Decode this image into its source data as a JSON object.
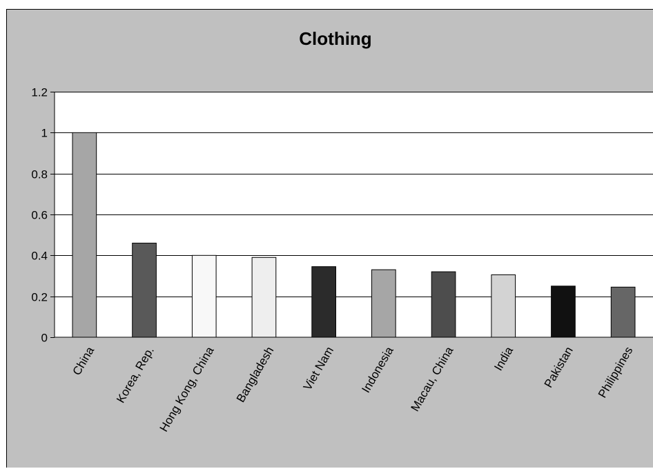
{
  "chart_data": {
    "type": "bar",
    "title": "Clothing",
    "xlabel": "",
    "ylabel": "",
    "categories": [
      "China",
      "Korea, Rep.",
      "Hong Kong, China",
      "Bangladesh",
      "Viet Nam",
      "Indonesia",
      "Macau, China",
      "India",
      "Pakistan",
      "Philippines"
    ],
    "values": [
      1.0,
      0.46,
      0.4,
      0.39,
      0.345,
      0.33,
      0.32,
      0.305,
      0.25,
      0.245
    ],
    "bar_colors": [
      "#a6a6a6",
      "#595959",
      "#f8f8f8",
      "#eeeeee",
      "#2b2b2b",
      "#a6a6a6",
      "#4d4d4d",
      "#d3d3d3",
      "#111111",
      "#666666"
    ],
    "ylim": [
      0,
      1.2
    ],
    "yticks": [
      0,
      0.2,
      0.4,
      0.6,
      0.8,
      1,
      1.2
    ],
    "ytick_labels": [
      "0",
      "0.2",
      "0.4",
      "0.6",
      "0.8",
      "1",
      "1.2"
    ],
    "grid": true,
    "legend": "none",
    "background_color": "#c0c0c0",
    "plot_background_color": "#ffffff"
  }
}
